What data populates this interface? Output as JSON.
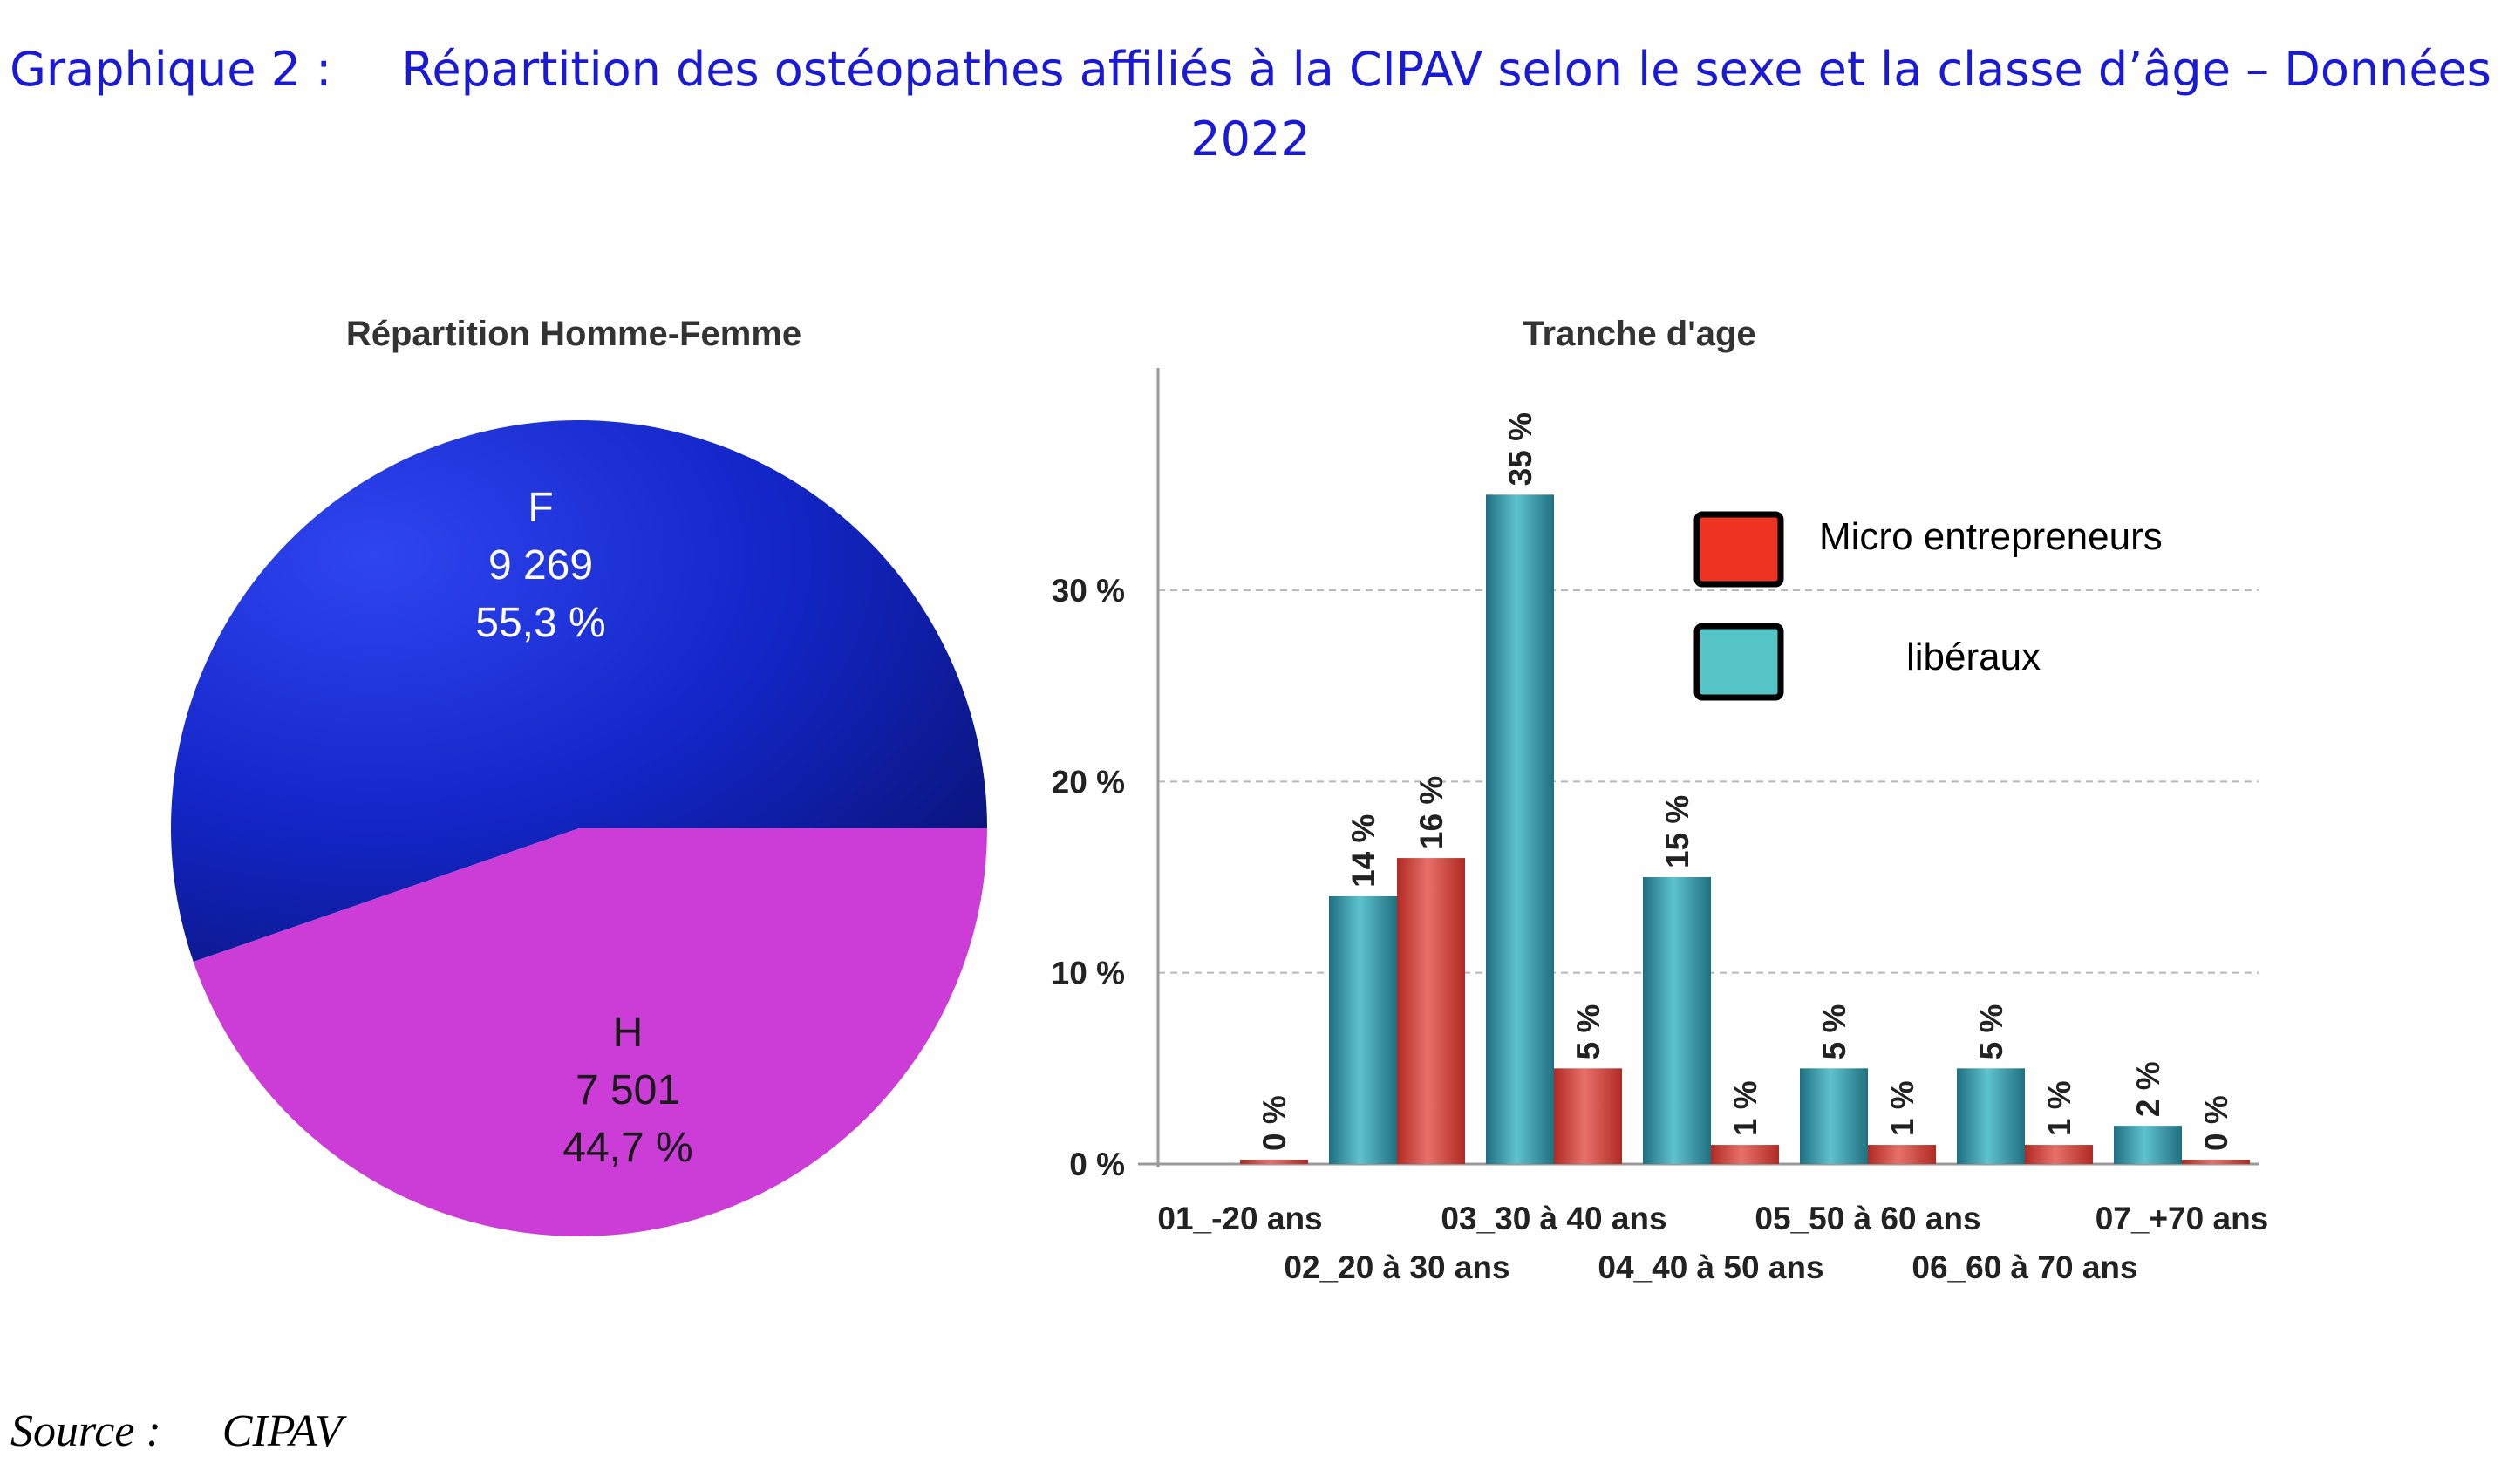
{
  "title": {
    "label": "Graphique 2 :",
    "line1": "Répartition des ostéopathes affiliés à la CIPAV selon le sexe et la classe d’âge – Données",
    "line2": "2022"
  },
  "source": {
    "label": "Source :",
    "value": "CIPAV"
  },
  "colors": {
    "title": "#1a1ad6",
    "female": "#1326c8",
    "male": "#cc3cd6",
    "micro": "#cc3228",
    "liberaux": "#2e95a6",
    "legend_micro": "#ee3322",
    "legend_liberaux": "#55c5c8"
  },
  "chart_data": [
    {
      "type": "pie",
      "title": "Répartition Homme-Femme",
      "slices": [
        {
          "name": "F",
          "count": "9 269",
          "percent_label": "55,3 %",
          "value": 55.3
        },
        {
          "name": "H",
          "count": "7 501",
          "percent_label": "44,7 %",
          "value": 44.7
        }
      ]
    },
    {
      "type": "bar",
      "title": "Tranche d'age",
      "categories": [
        "01_-20 ans",
        "02_20 à 30 ans",
        "03_30 à 40 ans",
        "04_40 à 50 ans",
        "05_50 à 60 ans",
        "06_60 à 70 ans",
        "07_+70 ans"
      ],
      "yticks": [
        "0 %",
        "10 %",
        "20 %",
        "30 %"
      ],
      "ylim": [
        0,
        36
      ],
      "grid": true,
      "legend_position": "top-right",
      "series": [
        {
          "name": "libéraux",
          "values": [
            null,
            14,
            35,
            15,
            5,
            5,
            2
          ],
          "labels": [
            null,
            "14 %",
            "35 %",
            "15 %",
            "5 %",
            "5 %",
            "2 %"
          ]
        },
        {
          "name": "Micro entrepreneurs",
          "values": [
            0,
            16,
            5,
            1,
            1,
            1,
            0
          ],
          "labels": [
            "0 %",
            "16 %",
            "5 %",
            "1 %",
            "1 %",
            "1 %",
            "0 %"
          ]
        }
      ]
    }
  ]
}
